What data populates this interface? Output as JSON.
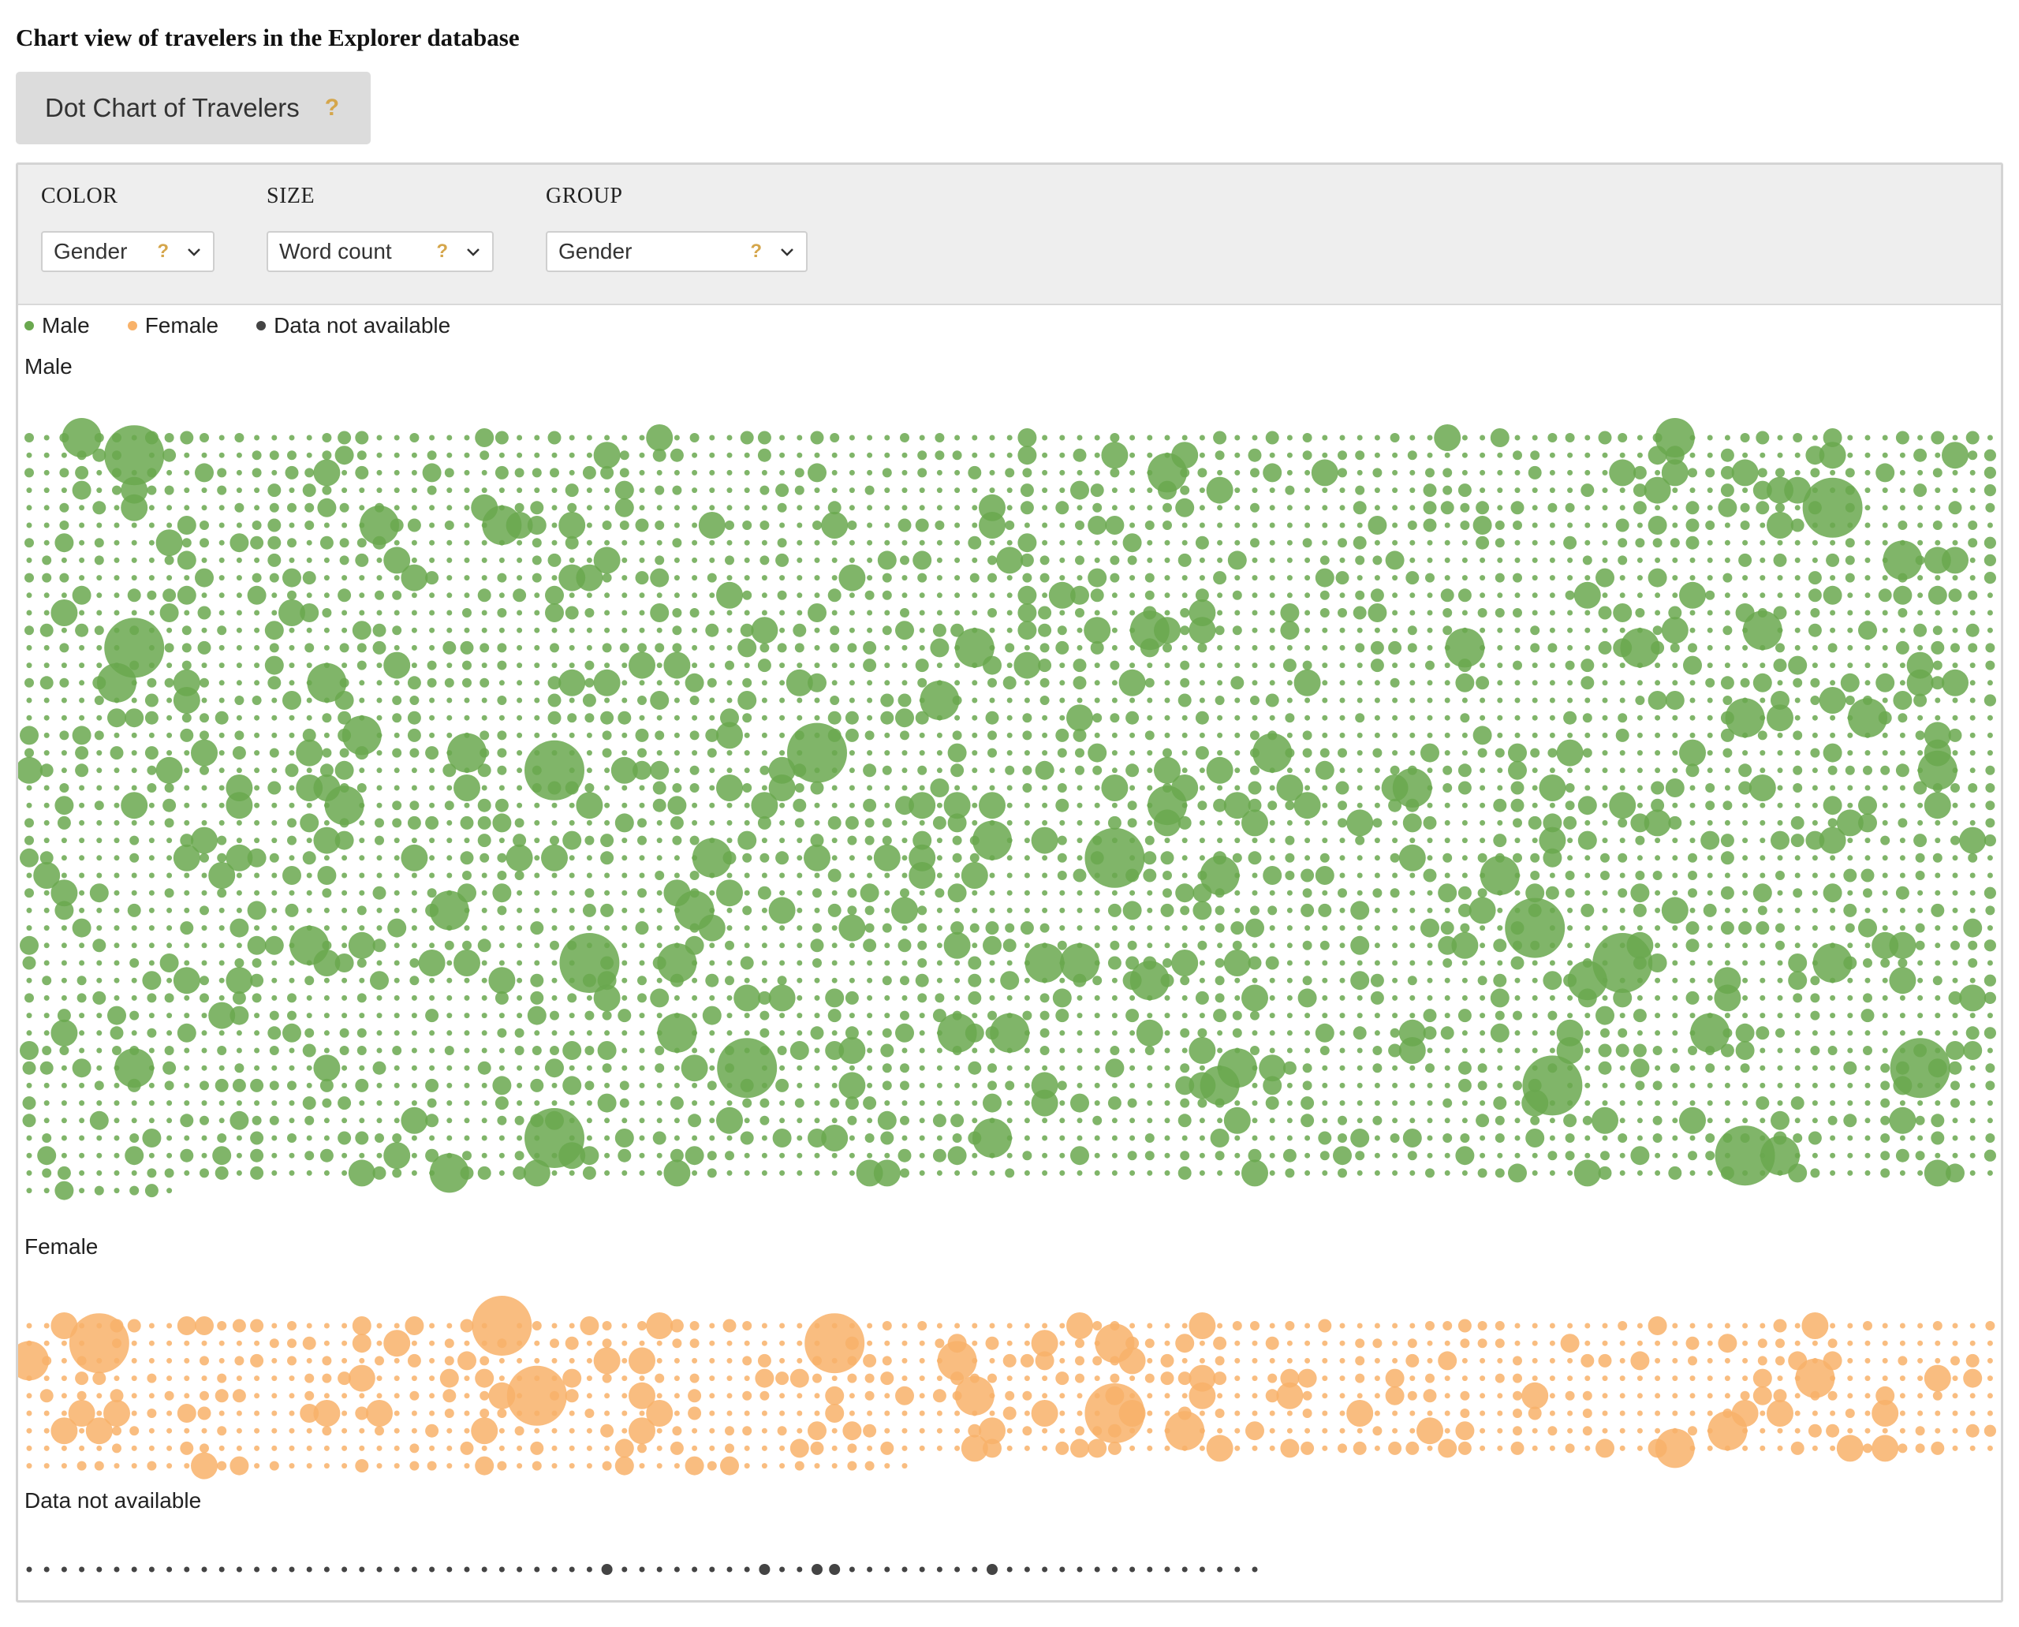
{
  "page": {
    "title": "Chart view of travelers in the Explorer database"
  },
  "view_tab": {
    "label": "Dot Chart of Travelers",
    "help": "?"
  },
  "controls": {
    "color": {
      "label": "COLOR",
      "value": "Gender",
      "help": "?"
    },
    "size": {
      "label": "SIZE",
      "value": "Word count",
      "help": "?"
    },
    "group": {
      "label": "GROUP",
      "value": "Gender",
      "help": "?"
    }
  },
  "chart_data": {
    "type": "scatter",
    "title": "",
    "encoding": {
      "color": "Gender",
      "size": "Word count",
      "group": "Gender"
    },
    "legend": {
      "position": "top-left",
      "items": [
        {
          "label": "Male",
          "color": "#6aa84f"
        },
        {
          "label": "Female",
          "color": "#f8b26a"
        },
        {
          "label": "Data not available",
          "color": "#444444"
        }
      ]
    },
    "groups": [
      {
        "name": "Male",
        "color": "#6aa84f",
        "approx_count": 5300
      },
      {
        "name": "Female",
        "color": "#f8b26a",
        "approx_count": 890
      },
      {
        "name": "Data not available",
        "color": "#444444",
        "approx_count": 70
      }
    ]
  }
}
